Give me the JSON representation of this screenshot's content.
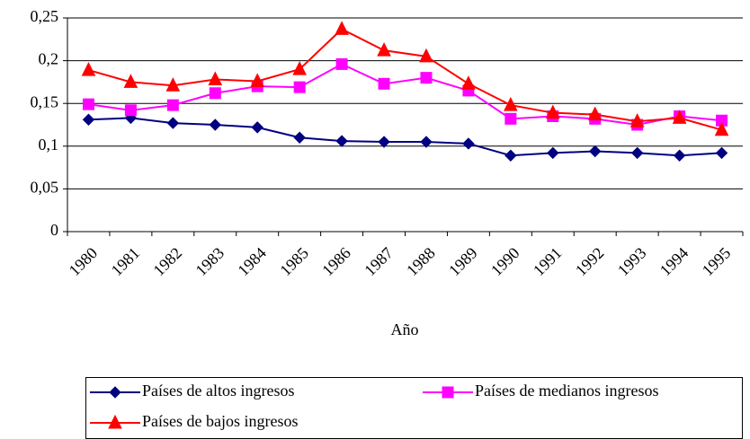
{
  "chart_data": {
    "type": "line",
    "x_label": "Año",
    "categories": [
      "1980",
      "1981",
      "1982",
      "1983",
      "1984",
      "1985",
      "1986",
      "1987",
      "1988",
      "1989",
      "1990",
      "1991",
      "1992",
      "1993",
      "1994",
      "1995"
    ],
    "series": [
      {
        "name": "Países de altos ingresos",
        "color": "#000080",
        "marker": "diamond",
        "values": [
          0.131,
          0.133,
          0.127,
          0.125,
          0.122,
          0.11,
          0.106,
          0.105,
          0.105,
          0.103,
          0.089,
          0.092,
          0.094,
          0.092,
          0.089,
          0.092
        ]
      },
      {
        "name": "Países de medianos ingresos",
        "color": "#ff00ff",
        "marker": "square",
        "values": [
          0.149,
          0.142,
          0.148,
          0.162,
          0.17,
          0.169,
          0.196,
          0.173,
          0.18,
          0.165,
          0.132,
          0.135,
          0.132,
          0.125,
          0.135,
          0.13
        ]
      },
      {
        "name": "Países de bajos ingresos",
        "color": "#ff0000",
        "marker": "triangle",
        "values": [
          0.189,
          0.175,
          0.171,
          0.178,
          0.176,
          0.19,
          0.237,
          0.212,
          0.205,
          0.173,
          0.148,
          0.139,
          0.137,
          0.129,
          0.133,
          0.119
        ]
      }
    ],
    "ylim": [
      0,
      0.25
    ],
    "yticks": [
      0,
      {
        "value": 0.05,
        "label": "0,05"
      },
      {
        "value": 0.1,
        "label": "0,1"
      },
      {
        "value": 0.15,
        "label": "0,15"
      },
      {
        "value": 0.2,
        "label": "0,2"
      },
      {
        "value": 0.25,
        "label": "0,25"
      }
    ],
    "grid": true
  }
}
